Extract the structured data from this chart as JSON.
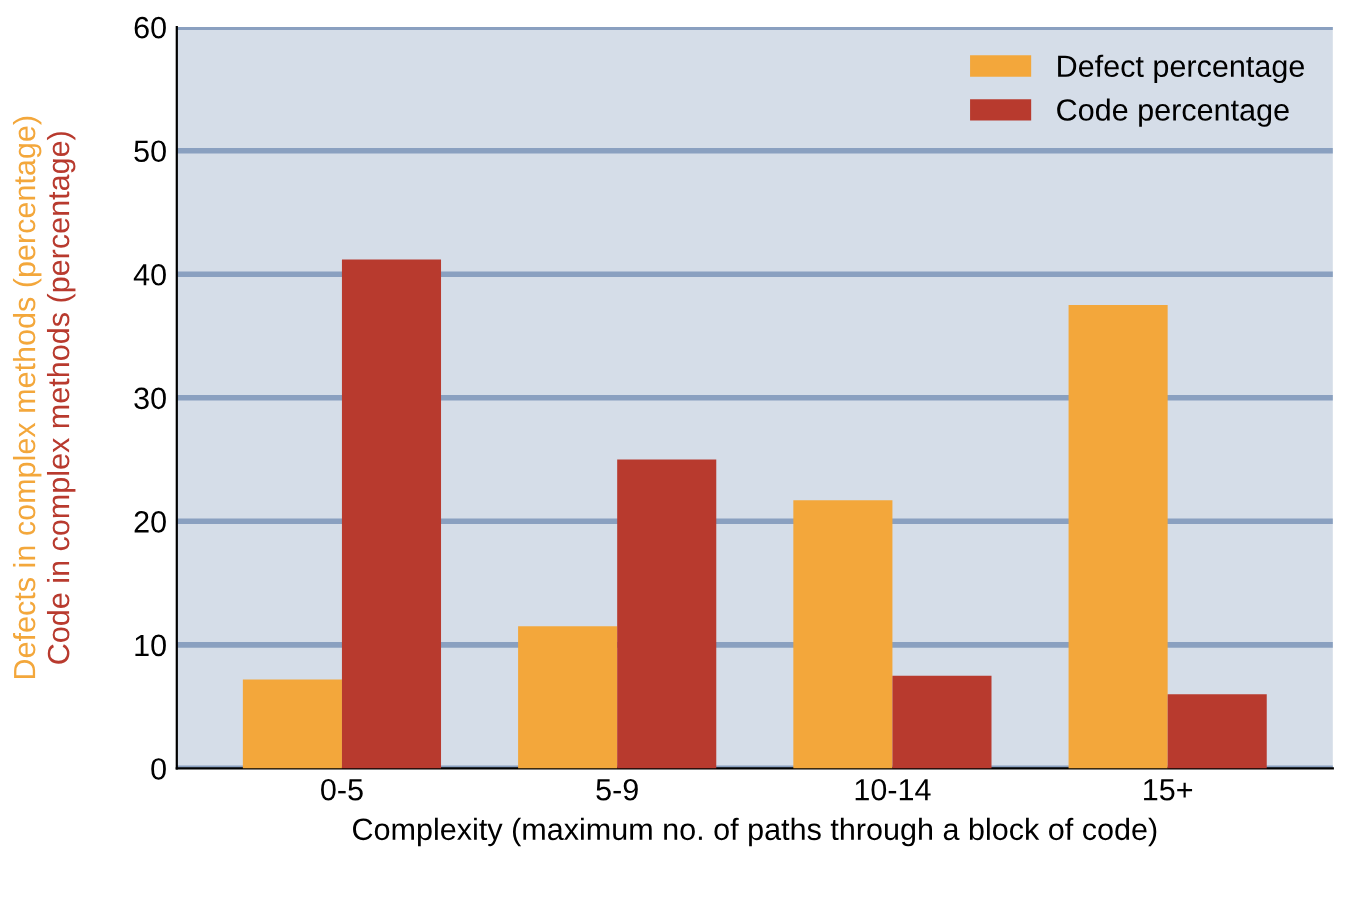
{
  "chart_data": {
    "type": "bar",
    "xlabel": "Complexity (maximum no. of paths through a block of code)",
    "ylabel": "Defects in complex methods (percentage)\nCode in complex methods (percentage)",
    "categories": [
      "0-5",
      "5-9",
      "10-14",
      "15+"
    ],
    "series": [
      {
        "name": "Defect percentage",
        "color": "#f3a73b",
        "values": [
          7.2,
          11.5,
          21.7,
          37.5
        ]
      },
      {
        "name": "Code percentage",
        "color": "#b83a2e",
        "values": [
          41.2,
          25,
          7.5,
          6
        ]
      }
    ],
    "ylim": [
      0,
      60
    ],
    "yticks": [
      0,
      10,
      20,
      30,
      40,
      50,
      60
    ],
    "grid": "y",
    "legend": "top right"
  }
}
